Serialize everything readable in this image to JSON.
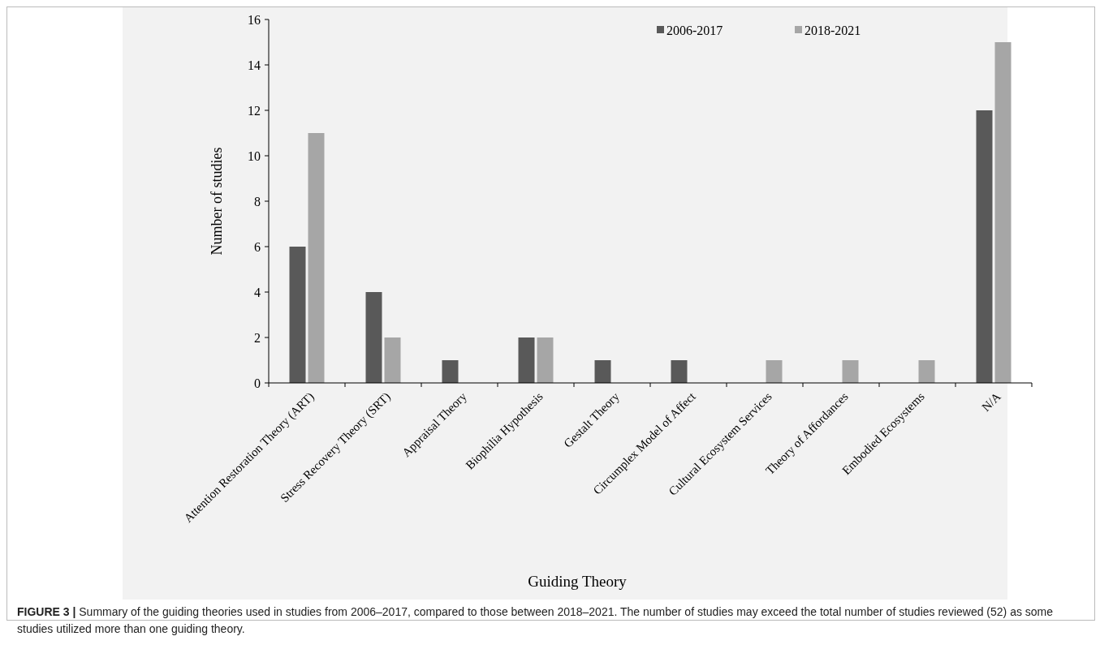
{
  "chart_data": {
    "type": "bar",
    "xlabel": "Guiding Theory",
    "ylabel": "Number of studies",
    "categories": [
      "Attention Restoration Theory (ART)",
      "Stress Recovery Theory (SRT)",
      "Appraisal Theory",
      "Biophilia Hypothesis",
      "Gestalt Theory",
      "Circumplex Model of Affect",
      "Cultural Ecosystem Services",
      "Theory of Affordances",
      "Embodied Ecosystems",
      "N/A"
    ],
    "series": [
      {
        "name": "2006-2017",
        "color": "#595959",
        "values": [
          6,
          4,
          1,
          2,
          1,
          1,
          0,
          0,
          0,
          12
        ]
      },
      {
        "name": "2018-2021",
        "color": "#a6a6a6",
        "values": [
          11,
          2,
          0,
          2,
          0,
          0,
          1,
          1,
          1,
          15
        ]
      }
    ],
    "ylim": [
      0,
      16
    ],
    "yticks": [
      0,
      2,
      4,
      6,
      8,
      10,
      12,
      14,
      16
    ],
    "grid": false,
    "legend": "top right",
    "annotations": [
      "FIGURE 3 | Summary of the guiding theories used in studies from 2006–2017, compared to those between 2018–2021. The number of studies may exceed the total number of studies reviewed (52) as some studies utilized more than one guiding theory."
    ]
  }
}
